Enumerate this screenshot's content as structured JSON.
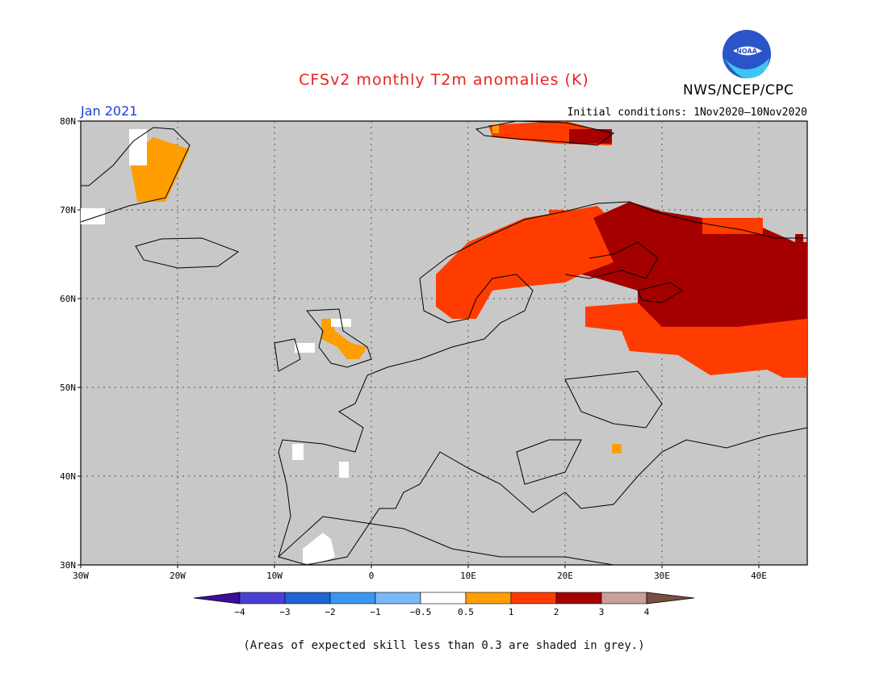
{
  "title": "CFSv2 monthly T2m anomalies (K)",
  "organization": "NWS/NCEP/CPC",
  "logo_text": "NOAA",
  "period": "Jan 2021",
  "initial_conditions": "Initial conditions: 1Nov2020–10Nov2020",
  "footnote": "(Areas of expected skill less than 0.3 are shaded in grey.)",
  "map": {
    "lon_labels": [
      "30W",
      "20W",
      "10W",
      "0",
      "10E",
      "20E",
      "30E",
      "40E"
    ],
    "lat_labels": [
      "80N",
      "70N",
      "60N",
      "50N",
      "40N",
      "30N"
    ],
    "background_color": "#c8c8c8",
    "grid": "dotted"
  },
  "legend": {
    "tick_labels": [
      "-4",
      "-3",
      "-2",
      "-1",
      "-0.5",
      "0.5",
      "1",
      "2",
      "3",
      "4"
    ],
    "colors": [
      "#3c0c9c",
      "#4a3fd4",
      "#1e64d2",
      "#3c96f0",
      "#78b9fa",
      "#ffffff",
      "#ff9e00",
      "#ff3c00",
      "#a50000",
      "#c8a097",
      "#785041"
    ]
  }
}
